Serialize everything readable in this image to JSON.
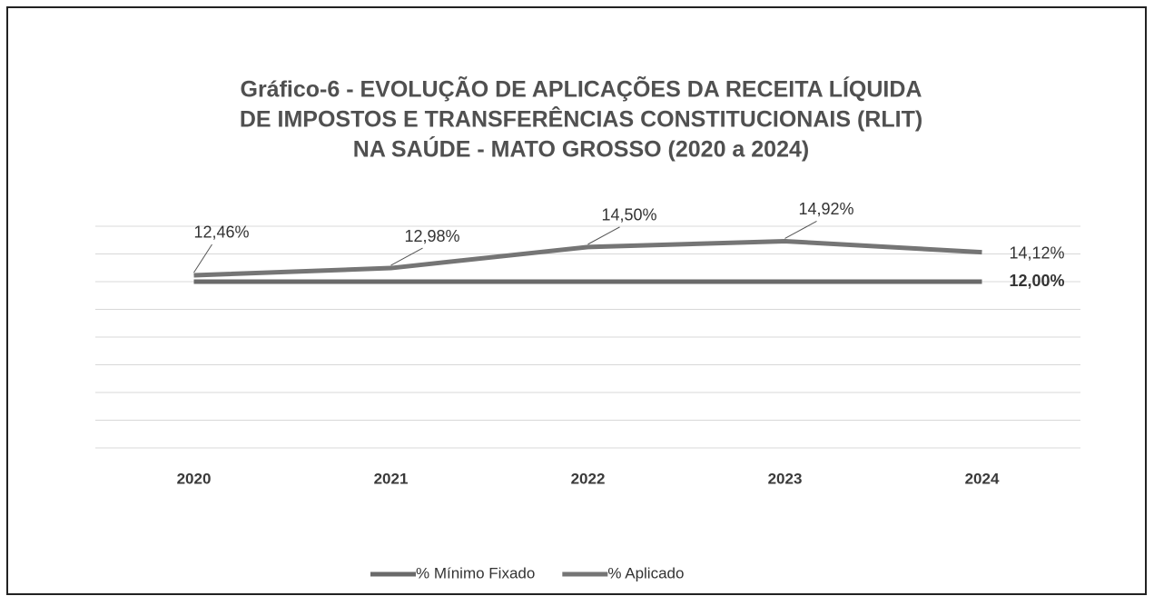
{
  "chart_data": {
    "type": "line",
    "title": [
      "Gráfico-6 - EVOLUÇÃO DE APLICAÇÕES DA RECEITA LÍQUIDA",
      "DE IMPOSTOS E TRANSFERÊNCIAS CONSTITUCIONAIS (RLIT)",
      "NA SAÚDE - MATO GROSSO (2020 a 2024)"
    ],
    "categories": [
      "2020",
      "2021",
      "2022",
      "2023",
      "2024"
    ],
    "series": [
      {
        "name": "% Mínimo Fixado",
        "color": "#6a6a6a",
        "values": [
          12,
          12,
          12,
          12,
          12
        ],
        "value_labels": [
          null,
          null,
          null,
          null,
          "12,00%"
        ]
      },
      {
        "name": "% Aplicado",
        "color": "#757575",
        "values": [
          12.46,
          12.98,
          14.5,
          14.92,
          14.12
        ],
        "value_labels": [
          "12,46%",
          "12,98%",
          "14,50%",
          "14,92%",
          "14,12%"
        ]
      }
    ],
    "ylim": [
      0,
      16
    ],
    "yticks": [
      0,
      2,
      4,
      6,
      8,
      10,
      12,
      14,
      16
    ],
    "grid": true,
    "legend": "bottom"
  }
}
